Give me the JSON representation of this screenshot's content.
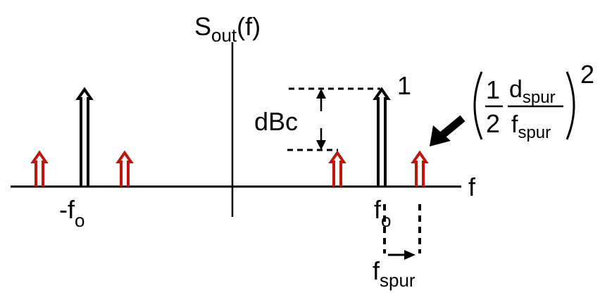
{
  "labels": {
    "y_axis_main": "S",
    "y_axis_sub": "out",
    "y_axis_tail": "(f)",
    "x_axis": "f",
    "neg_fo_main": "-f",
    "neg_fo_sub": "o",
    "fo_main": "f",
    "fo_sub": "o",
    "carrier_level": "1",
    "dbc": "dBc",
    "fspur_main": "f",
    "fspur_sub": "spur",
    "formula": {
      "num_one": "1",
      "den_two": "2",
      "num_d": "d",
      "num_d_sub": "spur",
      "den_f": "f",
      "den_f_sub": "spur",
      "exponent": "2"
    }
  },
  "colors": {
    "axis": "#000000",
    "carrier": "#000000",
    "spur": "#c0140c"
  }
}
